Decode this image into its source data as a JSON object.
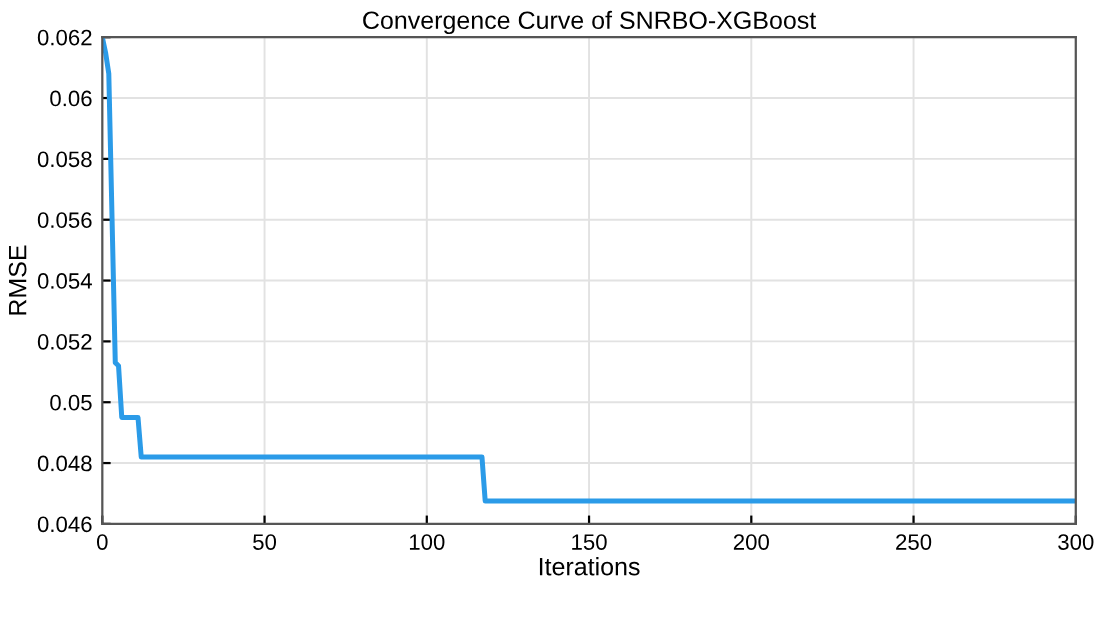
{
  "chart_data": {
    "type": "line",
    "title": "Convergence Curve of SNRBO-XGBoost",
    "xlabel": "Iterations",
    "ylabel": "RMSE",
    "x": [
      0,
      1,
      2,
      4,
      5,
      6,
      11,
      12,
      117,
      118,
      300
    ],
    "series": [
      {
        "color": "#2b9be8",
        "values": [
          0.062,
          0.0615,
          0.0608,
          0.0513,
          0.0512,
          0.0495,
          0.0495,
          0.0482,
          0.0482,
          0.04675,
          0.04675
        ]
      }
    ],
    "xlim": [
      0,
      300
    ],
    "xticks": [
      0,
      50,
      100,
      150,
      200,
      250,
      300
    ],
    "ylim": [
      0.046,
      0.062
    ],
    "yticks": [
      0.046,
      0.048,
      0.05,
      0.052,
      0.054,
      0.056,
      0.058,
      0.06,
      0.062
    ],
    "grid": true,
    "line_style": "solid",
    "marker": "none"
  }
}
